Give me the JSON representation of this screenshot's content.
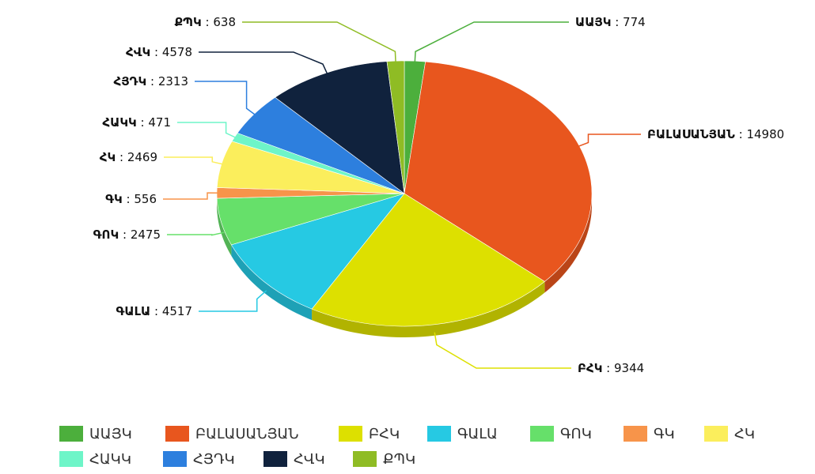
{
  "chart_data": {
    "type": "pie3d",
    "categories": [
      "ԱԱՅԿ",
      "ԲԱԼԱՍԱՆՅԱՆ",
      "ԲՀԿ",
      "ԳԱԼԱ",
      "ԳՈԿ",
      "ԳԿ",
      "ՀԿ",
      "ՀԱԿԿ",
      "ՀՅԴԿ",
      "ՀՎԿ",
      "ՔՊԿ"
    ],
    "values": [
      774,
      14980,
      9344,
      4517,
      2475,
      556,
      2469,
      471,
      2313,
      4578,
      638
    ],
    "colors": [
      "#4caf3c",
      "#e8561e",
      "#dde000",
      "#26c9e3",
      "#66e06a",
      "#f7944a",
      "#fbee5c",
      "#6ef5c8",
      "#2d7fde",
      "#10223d",
      "#8fbc24"
    ],
    "label_separator": " : ",
    "legend": "bottom-left"
  }
}
